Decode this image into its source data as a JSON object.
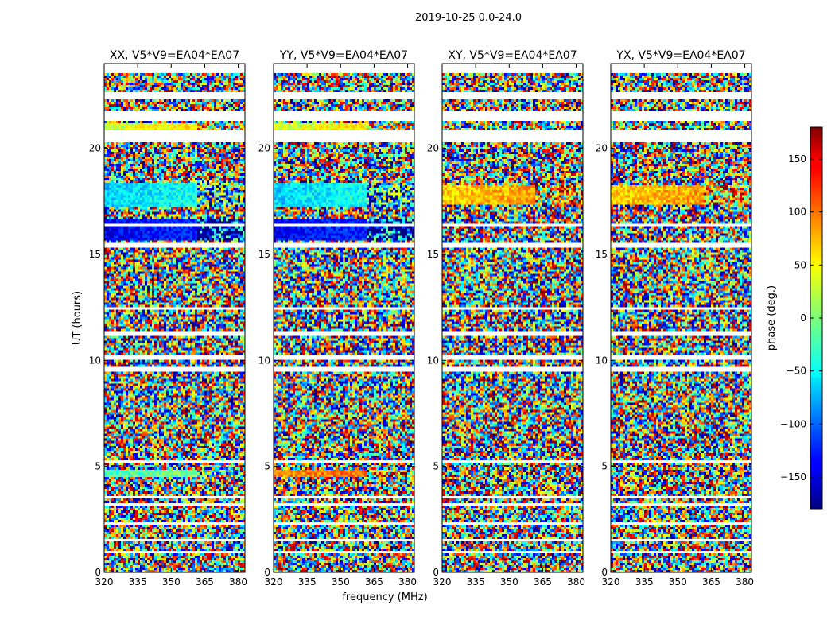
{
  "figure": {
    "suptitle": "2019-10-25 0.0-24.0"
  },
  "chart_data": {
    "type": "heatmap",
    "panels": [
      {
        "title": "XX, V5*V9=EA04*EA07",
        "polarization": "XX"
      },
      {
        "title": "YY, V5*V9=EA04*EA07",
        "polarization": "YY"
      },
      {
        "title": "XY, V5*V9=EA04*EA07",
        "polarization": "XY"
      },
      {
        "title": "YX, V5*V9=EA04*EA07",
        "polarization": "YX"
      }
    ],
    "xlabel": "frequency (MHz)",
    "ylabel": "UT (hours)",
    "xlim": [
      320,
      383
    ],
    "ylim": [
      0,
      24
    ],
    "xticks": [
      320,
      335,
      350,
      365,
      380
    ],
    "xtick_labels": [
      "320",
      "335",
      "350",
      "365",
      "380"
    ],
    "yticks": [
      0,
      5,
      10,
      15,
      20
    ],
    "ytick_labels": [
      "0",
      "5",
      "10",
      "15",
      "20"
    ],
    "colorbar": {
      "label": "phase (deg.)",
      "range": [
        -180,
        180
      ],
      "ticks": [
        -150,
        -100,
        -50,
        0,
        50,
        100,
        150
      ],
      "tick_labels": [
        "−150",
        "−100",
        "−50",
        "0",
        "50",
        "100",
        "150"
      ],
      "colormap": "jet"
    },
    "data_gaps_hours": [
      [
        23.6,
        24.0
      ],
      [
        22.3,
        22.7
      ],
      [
        21.3,
        21.7
      ],
      [
        20.3,
        20.8
      ],
      [
        16.3,
        16.4
      ],
      [
        15.35,
        15.5
      ],
      [
        12.4,
        12.5
      ],
      [
        11.2,
        11.35
      ],
      [
        10.0,
        10.2
      ],
      [
        9.5,
        9.7
      ],
      [
        5.2,
        5.3
      ],
      [
        3.5,
        3.65
      ],
      [
        3.2,
        3.3
      ],
      [
        2.3,
        2.4
      ],
      [
        1.5,
        1.6
      ],
      [
        0.95,
        1.0
      ]
    ],
    "coherent_bands_hours": [
      {
        "range": [
          20.9,
          21.15
        ],
        "mean_phase": 30,
        "panels": [
          "XX",
          "YY"
        ]
      },
      {
        "range": [
          17.2,
          18.4
        ],
        "mean_phase": -60,
        "panels": [
          "XX",
          "YY"
        ]
      },
      {
        "range": [
          17.4,
          18.3
        ],
        "mean_phase": 60,
        "panels": [
          "XY",
          "YX"
        ]
      },
      {
        "range": [
          15.7,
          16.7
        ],
        "mean_phase": -140,
        "panels": [
          "XX",
          "YY"
        ]
      },
      {
        "range": [
          4.5,
          4.9
        ],
        "mean_phase": -20,
        "panels": [
          "XX"
        ]
      },
      {
        "range": [
          4.5,
          4.9
        ],
        "mean_phase": 80,
        "panels": [
          "YY"
        ]
      }
    ]
  }
}
